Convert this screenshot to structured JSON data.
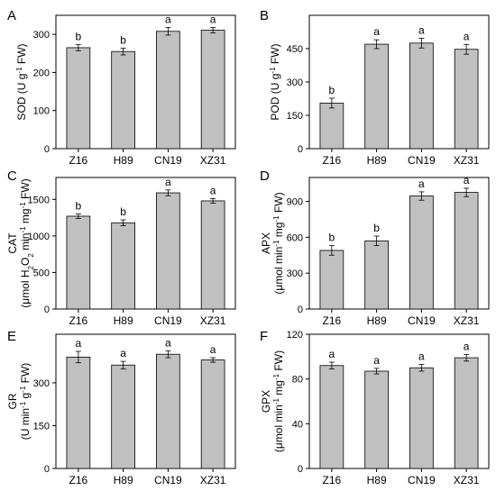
{
  "chart_data": [
    {
      "type": "bar",
      "panel": "A",
      "categories": [
        "Z16",
        "H89",
        "CN19",
        "XZ31"
      ],
      "values": [
        265,
        255,
        308,
        311
      ],
      "errors": [
        8,
        9,
        10,
        7
      ],
      "significance": [
        "b",
        "b",
        "a",
        "a"
      ],
      "ylim": [
        0,
        350
      ],
      "yticks": [
        0,
        100,
        200,
        300
      ],
      "ylabel": [
        "SOD  (U g",
        "-1",
        "  FW)"
      ]
    },
    {
      "type": "bar",
      "panel": "B",
      "categories": [
        "Z16",
        "H89",
        "CN19",
        "XZ31"
      ],
      "values": [
        205,
        470,
        475,
        447
      ],
      "errors": [
        22,
        20,
        22,
        22
      ],
      "significance": [
        "b",
        "a",
        "a",
        "a"
      ],
      "ylim": [
        0,
        600
      ],
      "yticks": [
        0,
        150,
        300,
        450
      ],
      "ylabel": [
        "POD  (U g",
        "-1",
        "  FW)"
      ]
    },
    {
      "type": "bar",
      "panel": "C",
      "categories": [
        "Z16",
        "H89",
        "CN19",
        "XZ31"
      ],
      "values": [
        1270,
        1180,
        1590,
        1480
      ],
      "errors": [
        30,
        40,
        40,
        30
      ],
      "significance": [
        "b",
        "b",
        "a",
        "a"
      ],
      "ylim": [
        0,
        1800
      ],
      "yticks": [
        0,
        500,
        1000,
        1500
      ],
      "ylabel_line1": "CAT",
      "ylabel_line2": [
        "(μmol H",
        "2",
        "O",
        "2",
        " min",
        "-1",
        " mg",
        "-1",
        " FW)"
      ]
    },
    {
      "type": "bar",
      "panel": "D",
      "categories": [
        "Z16",
        "H89",
        "CN19",
        "XZ31"
      ],
      "values": [
        490,
        570,
        945,
        975
      ],
      "errors": [
        40,
        40,
        35,
        35
      ],
      "significance": [
        "b",
        "b",
        "a",
        "a"
      ],
      "ylim": [
        0,
        1100
      ],
      "yticks": [
        0,
        300,
        600,
        900
      ],
      "ylabel_line1": "APX",
      "ylabel_line2": [
        "(μmol min",
        "-1",
        " mg",
        "-1",
        " FW)"
      ]
    },
    {
      "type": "bar",
      "panel": "E",
      "categories": [
        "Z16",
        "H89",
        "CN19",
        "XZ31"
      ],
      "values": [
        390,
        362,
        400,
        380
      ],
      "errors": [
        20,
        13,
        12,
        8
      ],
      "significance": [
        "a",
        "a",
        "a",
        "a"
      ],
      "ylim": [
        0,
        470
      ],
      "yticks": [
        0,
        150,
        300
      ],
      "ylabel_line1": "GR",
      "ylabel_line2": [
        "(U min",
        "-1",
        " g",
        "-1",
        " FW)"
      ]
    },
    {
      "type": "bar",
      "panel": "F",
      "categories": [
        "Z16",
        "H89",
        "CN19",
        "XZ31"
      ],
      "values": [
        92,
        87,
        90,
        99
      ],
      "errors": [
        3,
        2.5,
        3,
        3
      ],
      "significance": [
        "a",
        "a",
        "a",
        "a"
      ],
      "ylim": [
        0,
        120
      ],
      "yticks": [
        0,
        40,
        80,
        120
      ],
      "ylabel_line1": "GPX",
      "ylabel_line2": [
        "(μmol min",
        "-1",
        " mg",
        "-1",
        " FW)"
      ]
    }
  ]
}
